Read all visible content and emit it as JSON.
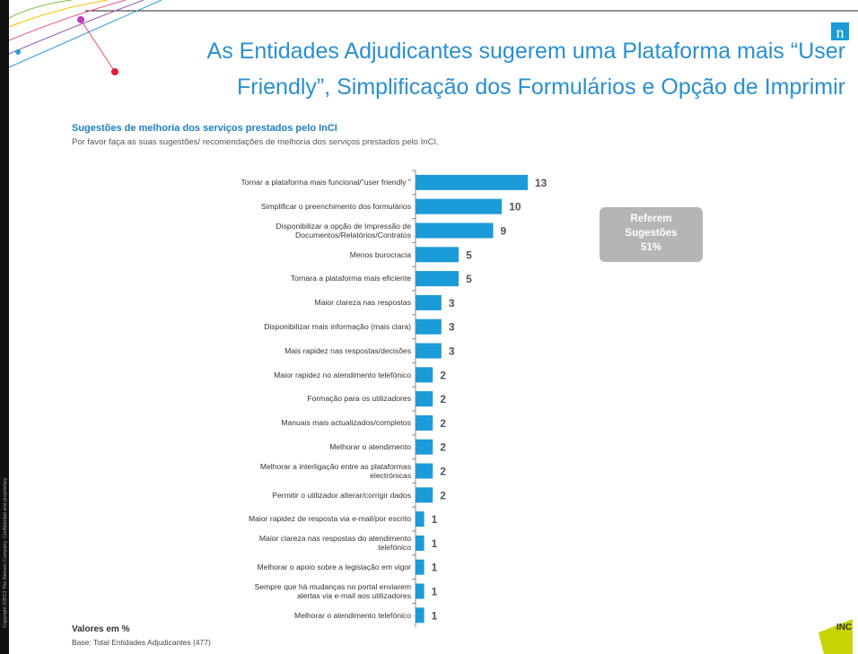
{
  "slide": {
    "title_lines": [
      "As Entidades Adjudicantes sugerem uma Plataforma mais “User",
      "Friendly”, Simplificação dos Formulários e Opção de Imprimir"
    ],
    "logo": "n",
    "copyright": "Copyright ©2013 The Nielsen Company. Confidential and proprietary.",
    "brand": "INC"
  },
  "chart_data": {
    "type": "barh",
    "title": "Sugestões de melhoria dos serviços prestados pelo InCI",
    "subtitle": "Por favor faça as suas sugestões/ recomendações de melhoria dos serviços prestados pelo InCI.",
    "categories": [
      "Tornar a plataforma mais funcional/\"user friendly \"",
      "Simplificar o preenchimento dos formulários",
      "Disponibilizar a opção de Impressão de Documentos/Relatórios/Contratos",
      "Menos burocracia",
      "Tornara a plataforma mais eficiente",
      "Maior clareza nas respostas",
      "Disponibilizar mais informação (mais clara)",
      "Mais rapidez nas respostas/decisões",
      "Maior rapidez no atendimento telefónico",
      "Formação para os utilizadores",
      "Manuais mais actualizados/completos",
      "Melhorar o atendimento",
      "Melhorar a interligação entre as plataformas electrónicas",
      "Permitir o utilizador alterar/corrigir dados",
      "Maior rapidez de resposta via e-mail/por escrito",
      "Maior clareza nas respostas do atendimento telefónico",
      "Melhorar o apoio sobre a legislação em vigor",
      "Sempre que há mudanças no portal enviarem alertas via e-mail aos utilizadores",
      "Melhorar o atendimento telefónico"
    ],
    "values": [
      13,
      10,
      9,
      5,
      5,
      3,
      3,
      3,
      2,
      2,
      2,
      2,
      2,
      2,
      1,
      1,
      1,
      1,
      1
    ],
    "color": "#1b9bd7",
    "callout": [
      "Referem",
      "Sugestões",
      "51%"
    ],
    "note": "Valores em %",
    "base": "Base: Total Entidades Adjudicantes (477)"
  }
}
